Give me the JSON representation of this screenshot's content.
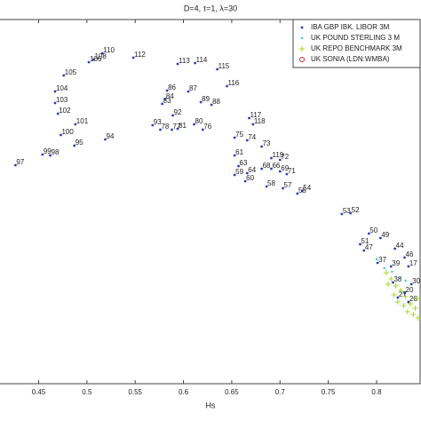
{
  "chart_data": {
    "type": "scatter",
    "title": "D=4, τ=1, λ=30",
    "xlabel": "Hs",
    "xlim": [
      0.41,
      0.846
    ],
    "ylim": [
      0,
      41
    ],
    "xticks": [
      0.45,
      0.5,
      0.55,
      0.6,
      0.65,
      0.7,
      0.75,
      0.8
    ],
    "legend": "upper right",
    "series": [
      {
        "name": "IBA GBP IBK. LIBOR 3M",
        "color": "#1f3fbf",
        "marker": "dot",
        "x": [
          0.516,
          0.507,
          0.502,
          0.548,
          0.594,
          0.612,
          0.635,
          0.476,
          0.467,
          0.467,
          0.47,
          0.488,
          0.473,
          0.487,
          0.519,
          0.454,
          0.462,
          0.426,
          0.583,
          0.605,
          0.578,
          0.581,
          0.618,
          0.629,
          0.645,
          0.589,
          0.568,
          0.576,
          0.588,
          0.594,
          0.611,
          0.62,
          0.668,
          0.672,
          0.653,
          0.666,
          0.681,
          0.691,
          0.7,
          0.653,
          0.657,
          0.653,
          0.666,
          0.681,
          0.691,
          0.7,
          0.707,
          0.664,
          0.686,
          0.703,
          0.723,
          0.718,
          0.764,
          0.773,
          0.792,
          0.783,
          0.787,
          0.804,
          0.801,
          0.819,
          0.829,
          0.815,
          0.817,
          0.822,
          0.833,
          0.836,
          0.829,
          0.833
        ],
        "values": [
          37.2,
          36.5,
          36.2,
          36.7,
          36.0,
          36.1,
          35.4,
          34.7,
          32.9,
          31.6,
          30.4,
          29.2,
          28.0,
          26.8,
          27.5,
          25.8,
          25.7,
          24.6,
          33.0,
          32.9,
          31.5,
          32.0,
          31.7,
          31.4,
          33.5,
          30.2,
          29.1,
          28.6,
          28.6,
          28.7,
          29.2,
          28.6,
          29.9,
          29.2,
          27.7,
          27.4,
          26.7,
          25.4,
          25.2,
          25.7,
          24.5,
          23.5,
          23.7,
          24.2,
          24.2,
          23.9,
          23.6,
          22.8,
          22.2,
          22.0,
          21.7,
          21.4,
          19.1,
          19.2,
          16.9,
          15.7,
          15.0,
          16.4,
          13.6,
          15.2,
          14.2,
          13.2,
          11.4,
          9.7,
          13.2,
          11.2,
          10.2,
          9.2
        ],
        "labels": [
          "110",
          "108",
          "106",
          "112",
          "113",
          "114",
          "115",
          "105",
          "104",
          "103",
          "102",
          "101",
          "100",
          "95",
          "94",
          "99",
          "98",
          "97",
          "86",
          "87",
          "83",
          "84",
          "89",
          "88",
          "116",
          "92",
          "93",
          "78",
          "77",
          "81",
          "80",
          "76",
          "117",
          "118",
          "75",
          "74",
          "73",
          "119",
          "72",
          "61",
          "63",
          "59",
          "64",
          "68",
          "66",
          "69",
          "71",
          "60",
          "58",
          "57",
          "54",
          "55",
          "53",
          "52",
          "50",
          "51",
          "47",
          "49",
          "37",
          "44",
          "46",
          "39",
          "38",
          "27",
          "17",
          "30",
          "20",
          "26"
        ]
      },
      {
        "name": "UK POUND STERLING 3 M",
        "color": "#30c8e0",
        "marker": "point",
        "x": [
          0.8,
          0.808,
          0.816,
          0.824,
          0.83
        ],
        "values": [
          14,
          13,
          12.6,
          12,
          11.6
        ]
      },
      {
        "name": "UK REPO BENCHMARK 3M",
        "color": "#a8d820",
        "marker": "plus",
        "x": [
          0.81,
          0.815,
          0.82,
          0.825,
          0.83,
          0.835,
          0.84,
          0.818,
          0.828,
          0.838,
          0.843,
          0.812,
          0.822,
          0.832,
          0.842
        ],
        "values": [
          12.5,
          11.8,
          11,
          10.5,
          9.8,
          9,
          8.5,
          10,
          8.8,
          7.8,
          7.4,
          11.2,
          9.2,
          8.1,
          9.6
        ]
      },
      {
        "name": "UK SONIA (LDN:WMBA)",
        "color": "#d02020",
        "marker": "circle",
        "x": [],
        "values": []
      }
    ]
  }
}
